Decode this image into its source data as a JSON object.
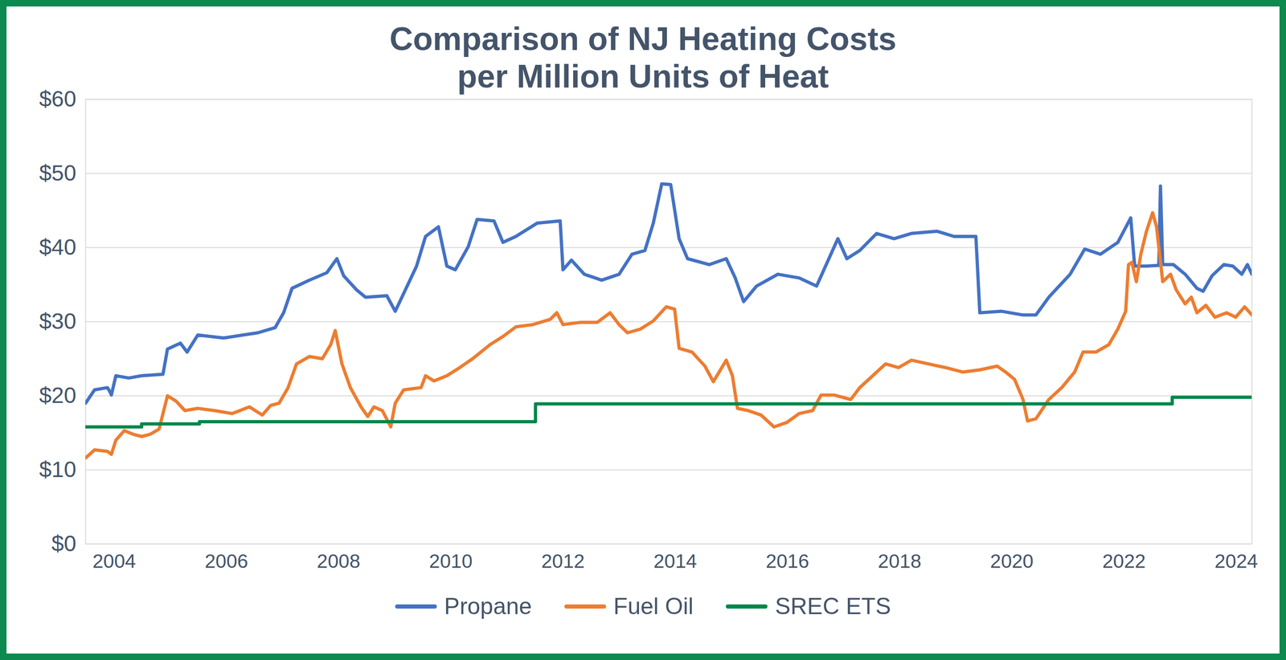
{
  "chart_data": {
    "type": "line",
    "title": "Comparison of NJ Heating Costs\nper Million Units of Heat",
    "xlim": [
      2003.49,
      2024.28
    ],
    "xticks": [
      2004,
      2006,
      2008,
      2010,
      2012,
      2014,
      2016,
      2018,
      2020,
      2022,
      2024
    ],
    "ylim": [
      0,
      60
    ],
    "yticks": [
      {
        "value": 0,
        "label": "$0"
      },
      {
        "value": 10,
        "label": "$10"
      },
      {
        "value": 20,
        "label": "$20"
      },
      {
        "value": 30,
        "label": "$30"
      },
      {
        "value": 40,
        "label": "$40"
      },
      {
        "value": 50,
        "label": "$50"
      },
      {
        "value": 60,
        "label": "$60"
      }
    ],
    "grid": true,
    "legend": "bottom",
    "series": [
      {
        "name": "Propane",
        "color": "#4472C4",
        "x": [
          2003.49,
          2003.65,
          2003.88,
          2003.92,
          2003.95,
          2004.03,
          2004.26,
          2004.49,
          2004.87,
          2004.95,
          2005.18,
          2005.3,
          2005.49,
          2005.95,
          2006.56,
          2006.87,
          2007.02,
          2007.17,
          2007.48,
          2007.79,
          2007.97,
          2008.09,
          2008.32,
          2008.48,
          2008.86,
          2009.01,
          2009.16,
          2009.39,
          2009.55,
          2009.78,
          2009.93,
          2010.08,
          2010.31,
          2010.47,
          2010.77,
          2010.93,
          2011.16,
          2011.54,
          2011.95,
          2012.0,
          2012.15,
          2012.38,
          2012.69,
          2013.0,
          2013.23,
          2013.46,
          2013.61,
          2013.76,
          2013.92,
          2014.07,
          2014.22,
          2014.61,
          2014.91,
          2015.07,
          2015.22,
          2015.45,
          2015.83,
          2016.21,
          2016.52,
          2016.9,
          2017.06,
          2017.29,
          2017.59,
          2017.9,
          2018.21,
          2018.67,
          2018.97,
          2019.36,
          2019.43,
          2019.82,
          2020.2,
          2020.43,
          2020.66,
          2021.04,
          2021.3,
          2021.58,
          2021.89,
          2022.12,
          2022.19,
          2022.4,
          2022.62,
          2022.65,
          2022.69,
          2022.88,
          2023.09,
          2023.3,
          2023.41,
          2023.57,
          2023.78,
          2023.94,
          2024.1,
          2024.2,
          2024.28
        ],
        "values": [
          19.0,
          20.8,
          21.1,
          20.6,
          20.1,
          22.7,
          22.4,
          22.7,
          22.9,
          26.3,
          27.1,
          25.9,
          28.2,
          27.8,
          28.5,
          29.2,
          31.2,
          34.5,
          35.6,
          36.6,
          38.5,
          36.2,
          34.3,
          33.3,
          33.5,
          31.4,
          33.8,
          37.5,
          41.5,
          42.8,
          37.5,
          37.0,
          40.1,
          43.8,
          43.6,
          40.7,
          41.5,
          43.3,
          43.6,
          37.0,
          38.3,
          36.4,
          35.6,
          36.4,
          39.1,
          39.6,
          43.3,
          48.6,
          48.5,
          41.2,
          38.5,
          37.7,
          38.5,
          35.9,
          32.7,
          34.8,
          36.4,
          35.9,
          34.8,
          41.2,
          38.5,
          39.6,
          41.9,
          41.2,
          41.9,
          42.2,
          41.5,
          41.5,
          31.2,
          31.4,
          30.9,
          30.9,
          33.3,
          36.4,
          39.8,
          39.1,
          40.7,
          44.0,
          37.5,
          37.5,
          37.6,
          48.3,
          37.7,
          37.7,
          36.4,
          34.5,
          34.1,
          36.2,
          37.7,
          37.5,
          36.4,
          37.7,
          36.4
        ]
      },
      {
        "name": "Fuel Oil",
        "color": "#ED7D31",
        "x": [
          2003.49,
          2003.65,
          2003.88,
          2003.95,
          2004.03,
          2004.18,
          2004.34,
          2004.49,
          2004.64,
          2004.8,
          2004.95,
          2005.1,
          2005.26,
          2005.49,
          2005.79,
          2006.1,
          2006.41,
          2006.64,
          2006.79,
          2006.94,
          2007.1,
          2007.25,
          2007.48,
          2007.71,
          2007.86,
          2007.94,
          2008.06,
          2008.21,
          2008.4,
          2008.52,
          2008.63,
          2008.78,
          2008.93,
          2009.01,
          2009.16,
          2009.47,
          2009.55,
          2009.7,
          2009.93,
          2010.16,
          2010.39,
          2010.7,
          2010.93,
          2011.16,
          2011.46,
          2011.77,
          2011.89,
          2012.0,
          2012.31,
          2012.61,
          2012.84,
          2013.0,
          2013.15,
          2013.38,
          2013.61,
          2013.84,
          2013.99,
          2014.07,
          2014.3,
          2014.53,
          2014.68,
          2014.91,
          2015.02,
          2015.11,
          2015.3,
          2015.53,
          2015.76,
          2015.99,
          2016.21,
          2016.45,
          2016.6,
          2016.83,
          2017.13,
          2017.29,
          2017.52,
          2017.75,
          2017.98,
          2018.21,
          2018.51,
          2018.82,
          2019.13,
          2019.43,
          2019.74,
          2019.89,
          2020.05,
          2020.2,
          2020.28,
          2020.43,
          2020.66,
          2020.89,
          2021.12,
          2021.27,
          2021.5,
          2021.73,
          2021.89,
          2022.03,
          2022.08,
          2022.14,
          2022.22,
          2022.3,
          2022.4,
          2022.51,
          2022.58,
          2022.69,
          2022.83,
          2022.93,
          2023.09,
          2023.2,
          2023.3,
          2023.46,
          2023.62,
          2023.83,
          2023.99,
          2024.15,
          2024.28
        ],
        "values": [
          11.6,
          12.7,
          12.5,
          12.1,
          14.0,
          15.3,
          14.8,
          14.5,
          14.8,
          15.5,
          20.0,
          19.3,
          18.0,
          18.3,
          18.0,
          17.6,
          18.5,
          17.4,
          18.7,
          19.0,
          21.1,
          24.3,
          25.3,
          25.0,
          26.9,
          28.8,
          24.3,
          21.1,
          18.5,
          17.2,
          18.5,
          18.0,
          15.8,
          19.0,
          20.8,
          21.1,
          22.7,
          22.0,
          22.7,
          23.8,
          25.0,
          26.9,
          28.0,
          29.3,
          29.6,
          30.3,
          31.2,
          29.6,
          29.9,
          29.9,
          31.2,
          29.6,
          28.5,
          29.0,
          30.1,
          32.0,
          31.7,
          26.4,
          25.9,
          24.0,
          21.9,
          24.8,
          22.7,
          18.3,
          18.0,
          17.4,
          15.8,
          16.4,
          17.6,
          18.0,
          20.1,
          20.1,
          19.5,
          21.1,
          22.7,
          24.3,
          23.8,
          24.8,
          24.3,
          23.8,
          23.2,
          23.5,
          24.0,
          23.2,
          22.2,
          19.5,
          16.6,
          16.9,
          19.5,
          21.1,
          23.2,
          25.9,
          25.9,
          26.9,
          29.0,
          31.4,
          37.7,
          38.0,
          35.4,
          39.1,
          42.2,
          44.7,
          42.8,
          35.4,
          36.4,
          34.3,
          32.4,
          33.3,
          31.2,
          32.2,
          30.6,
          31.2,
          30.6,
          32.0,
          30.9
        ]
      },
      {
        "name": "SREC ETS",
        "color": "#00874A",
        "x": [
          2003.49,
          2004.49,
          2004.49,
          2005.52,
          2005.52,
          2011.51,
          2011.51,
          2022.86,
          2022.86,
          2024.28
        ],
        "values": [
          15.8,
          15.8,
          16.2,
          16.2,
          16.5,
          16.5,
          18.9,
          18.9,
          19.8,
          19.8
        ]
      }
    ]
  }
}
